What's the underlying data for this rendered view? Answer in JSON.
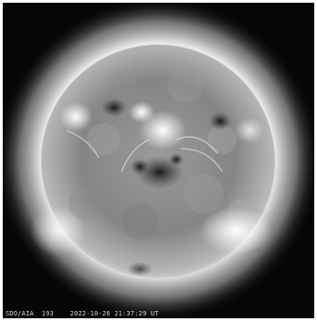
{
  "image": {
    "subject": "sun-disk",
    "background_color": "#060606",
    "corona_color": "#f2f2f2",
    "disk_color": "#8a8a8a"
  },
  "caption": {
    "text": "SDO/AIA  193    2022-10-26 21:37:29 UT"
  }
}
